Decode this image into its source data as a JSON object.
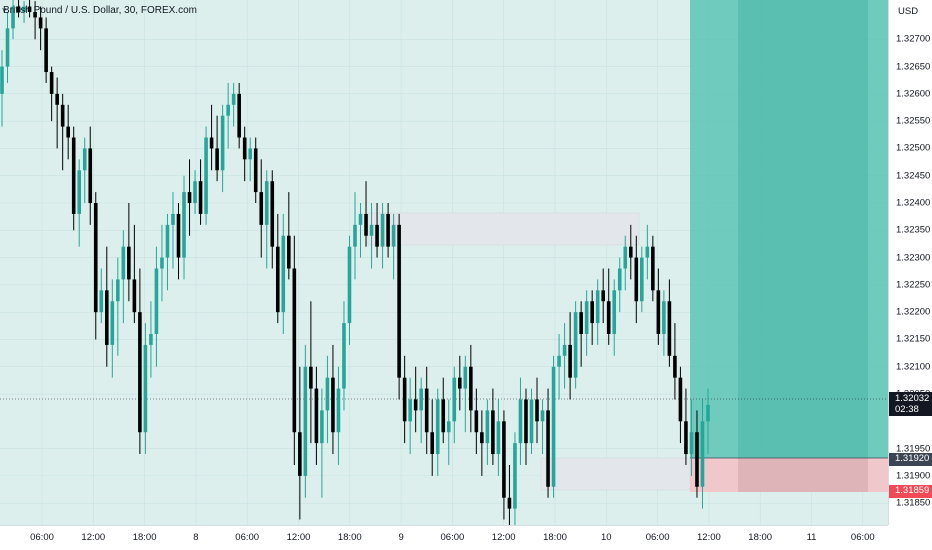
{
  "symbol": {
    "title": "British Pound / U.S. Dollar, 30, FOREX.com"
  },
  "price_scale": {
    "currency": "USD",
    "ticks": [
      "1.32700",
      "1.32650",
      "1.32600",
      "1.32550",
      "1.32500",
      "1.32450",
      "1.32400",
      "1.32350",
      "1.32300",
      "1.32250",
      "1.32200",
      "1.32150",
      "1.32100",
      "1.32050",
      "1.31950",
      "1.31900",
      "1.31850"
    ],
    "current_price": "1.32032",
    "countdown": "02:38",
    "target_price": "1.31920",
    "stop_price": "1.31859"
  },
  "time_scale": {
    "labels": [
      "06:00",
      "12:00",
      "18:00",
      "8",
      "06:00",
      "12:00",
      "18:00",
      "9",
      "06:00",
      "12:00",
      "18:00",
      "10",
      "06:00",
      "12:00",
      "18:00",
      "11",
      "06:00"
    ]
  },
  "colors": {
    "background": "#dcefed",
    "bull": "#26a69a",
    "bear": "#000000",
    "profit_zone": "#5cc4b4",
    "loss_zone": "#f2c3c7",
    "supply_box": "#e3e6ea"
  },
  "chart_data": {
    "type": "candlestick",
    "ylim": [
      1.3181,
      1.3275
    ],
    "interval": "30",
    "candles": [
      [
        1.326,
        1.3268,
        1.3254,
        1.3265
      ],
      [
        1.3265,
        1.3275,
        1.3262,
        1.3272
      ],
      [
        1.3272,
        1.3278,
        1.327,
        1.3276
      ],
      [
        1.3276,
        1.3278,
        1.3274,
        1.3275
      ],
      [
        1.3275,
        1.3277,
        1.3273,
        1.3276
      ],
      [
        1.3276,
        1.3278,
        1.3274,
        1.3275
      ],
      [
        1.3275,
        1.3277,
        1.327,
        1.3274
      ],
      [
        1.3274,
        1.3276,
        1.3268,
        1.3272
      ],
      [
        1.3272,
        1.3274,
        1.3262,
        1.3264
      ],
      [
        1.3264,
        1.3265,
        1.3255,
        1.326
      ],
      [
        1.326,
        1.3263,
        1.325,
        1.3258
      ],
      [
        1.3258,
        1.326,
        1.3246,
        1.3254
      ],
      [
        1.3254,
        1.3258,
        1.3248,
        1.3252
      ],
      [
        1.3252,
        1.3254,
        1.3235,
        1.3238
      ],
      [
        1.3238,
        1.3248,
        1.3232,
        1.3246
      ],
      [
        1.3246,
        1.3252,
        1.324,
        1.325
      ],
      [
        1.325,
        1.3254,
        1.3236,
        1.324
      ],
      [
        1.324,
        1.3242,
        1.3215,
        1.322
      ],
      [
        1.322,
        1.3228,
        1.3218,
        1.3224
      ],
      [
        1.3224,
        1.3232,
        1.321,
        1.3214
      ],
      [
        1.3214,
        1.3226,
        1.3208,
        1.3222
      ],
      [
        1.3222,
        1.323,
        1.3212,
        1.3226
      ],
      [
        1.3226,
        1.3235,
        1.3218,
        1.3232
      ],
      [
        1.3232,
        1.324,
        1.3222,
        1.3226
      ],
      [
        1.3226,
        1.3236,
        1.3218,
        1.322
      ],
      [
        1.322,
        1.3228,
        1.3194,
        1.3198
      ],
      [
        1.3198,
        1.3218,
        1.3194,
        1.3214
      ],
      [
        1.3214,
        1.3222,
        1.3208,
        1.3216
      ],
      [
        1.3216,
        1.3232,
        1.321,
        1.3228
      ],
      [
        1.3228,
        1.3236,
        1.3222,
        1.323
      ],
      [
        1.323,
        1.3238,
        1.3224,
        1.3236
      ],
      [
        1.3236,
        1.3242,
        1.3228,
        1.3238
      ],
      [
        1.3238,
        1.324,
        1.3226,
        1.323
      ],
      [
        1.323,
        1.3245,
        1.3226,
        1.3242
      ],
      [
        1.3242,
        1.3248,
        1.3234,
        1.324
      ],
      [
        1.324,
        1.3246,
        1.3238,
        1.3244
      ],
      [
        1.3244,
        1.3248,
        1.3236,
        1.3238
      ],
      [
        1.3238,
        1.3254,
        1.3236,
        1.3252
      ],
      [
        1.3252,
        1.3258,
        1.3246,
        1.325
      ],
      [
        1.325,
        1.3256,
        1.3244,
        1.3246
      ],
      [
        1.3246,
        1.3258,
        1.3242,
        1.3256
      ],
      [
        1.3256,
        1.3262,
        1.325,
        1.3258
      ],
      [
        1.3258,
        1.3262,
        1.3254,
        1.326
      ],
      [
        1.326,
        1.3262,
        1.325,
        1.3252
      ],
      [
        1.3252,
        1.3254,
        1.3244,
        1.3248
      ],
      [
        1.3248,
        1.3252,
        1.3244,
        1.325
      ],
      [
        1.325,
        1.3252,
        1.324,
        1.3242
      ],
      [
        1.3242,
        1.3248,
        1.323,
        1.3236
      ],
      [
        1.3236,
        1.3246,
        1.3228,
        1.3244
      ],
      [
        1.3244,
        1.3246,
        1.3228,
        1.3232
      ],
      [
        1.3232,
        1.3238,
        1.3218,
        1.322
      ],
      [
        1.322,
        1.3238,
        1.3216,
        1.3234
      ],
      [
        1.3234,
        1.3242,
        1.3226,
        1.3228
      ],
      [
        1.3228,
        1.3234,
        1.3192,
        1.3198
      ],
      [
        1.3198,
        1.321,
        1.3182,
        1.319
      ],
      [
        1.319,
        1.3214,
        1.3186,
        1.321
      ],
      [
        1.321,
        1.3222,
        1.3196,
        1.3206
      ],
      [
        1.3206,
        1.321,
        1.3192,
        1.3196
      ],
      [
        1.3196,
        1.3206,
        1.3186,
        1.3202
      ],
      [
        1.3202,
        1.3212,
        1.3196,
        1.3208
      ],
      [
        1.3208,
        1.3214,
        1.3194,
        1.3198
      ],
      [
        1.3198,
        1.321,
        1.3192,
        1.3206
      ],
      [
        1.3206,
        1.3222,
        1.3202,
        1.3218
      ],
      [
        1.3218,
        1.3234,
        1.3214,
        1.3232
      ],
      [
        1.3232,
        1.3242,
        1.3226,
        1.3236
      ],
      [
        1.3236,
        1.324,
        1.323,
        1.3238
      ],
      [
        1.3238,
        1.3244,
        1.3232,
        1.3234
      ],
      [
        1.3234,
        1.324,
        1.3228,
        1.3236
      ],
      [
        1.3236,
        1.324,
        1.323,
        1.3232
      ],
      [
        1.3232,
        1.324,
        1.3228,
        1.3238
      ],
      [
        1.3238,
        1.324,
        1.323,
        1.3232
      ],
      [
        1.3232,
        1.3238,
        1.3226,
        1.3236
      ],
      [
        1.3236,
        1.3238,
        1.3204,
        1.3208
      ],
      [
        1.3208,
        1.3212,
        1.3196,
        1.32
      ],
      [
        1.32,
        1.3208,
        1.3194,
        1.3204
      ],
      [
        1.3204,
        1.321,
        1.3198,
        1.3202
      ],
      [
        1.3202,
        1.3208,
        1.3196,
        1.3206
      ],
      [
        1.3206,
        1.321,
        1.3194,
        1.3198
      ],
      [
        1.3198,
        1.3204,
        1.319,
        1.3194
      ],
      [
        1.3194,
        1.3206,
        1.319,
        1.3204
      ],
      [
        1.3204,
        1.3208,
        1.3196,
        1.3198
      ],
      [
        1.3198,
        1.3204,
        1.3192,
        1.32
      ],
      [
        1.32,
        1.321,
        1.3196,
        1.3208
      ],
      [
        1.3208,
        1.3212,
        1.3202,
        1.3206
      ],
      [
        1.3206,
        1.3212,
        1.3198,
        1.321
      ],
      [
        1.321,
        1.3214,
        1.3198,
        1.3202
      ],
      [
        1.3202,
        1.3206,
        1.3194,
        1.3198
      ],
      [
        1.3198,
        1.3202,
        1.319,
        1.3196
      ],
      [
        1.3196,
        1.3204,
        1.3192,
        1.3202
      ],
      [
        1.3202,
        1.3206,
        1.3192,
        1.3194
      ],
      [
        1.3194,
        1.3204,
        1.319,
        1.32
      ],
      [
        1.32,
        1.3202,
        1.3182,
        1.3186
      ],
      [
        1.3186,
        1.3192,
        1.3178,
        1.3184
      ],
      [
        1.3184,
        1.3198,
        1.318,
        1.3196
      ],
      [
        1.3196,
        1.3208,
        1.3192,
        1.3204
      ],
      [
        1.3204,
        1.3206,
        1.3192,
        1.3196
      ],
      [
        1.3196,
        1.3206,
        1.3194,
        1.3204
      ],
      [
        1.3204,
        1.3208,
        1.3196,
        1.32
      ],
      [
        1.32,
        1.3204,
        1.3194,
        1.3202
      ],
      [
        1.3202,
        1.3206,
        1.3186,
        1.3188
      ],
      [
        1.3188,
        1.3212,
        1.3186,
        1.321
      ],
      [
        1.321,
        1.3216,
        1.3204,
        1.3212
      ],
      [
        1.3212,
        1.3218,
        1.3206,
        1.3214
      ],
      [
        1.3214,
        1.322,
        1.3204,
        1.3208
      ],
      [
        1.3208,
        1.3222,
        1.3206,
        1.322
      ],
      [
        1.322,
        1.3222,
        1.321,
        1.3216
      ],
      [
        1.3216,
        1.3224,
        1.3212,
        1.3222
      ],
      [
        1.3222,
        1.3224,
        1.3214,
        1.3218
      ],
      [
        1.3218,
        1.3226,
        1.3214,
        1.3224
      ],
      [
        1.3224,
        1.3228,
        1.3218,
        1.3222
      ],
      [
        1.3222,
        1.3228,
        1.3214,
        1.3216
      ],
      [
        1.3216,
        1.3226,
        1.3212,
        1.3224
      ],
      [
        1.3224,
        1.323,
        1.322,
        1.3228
      ],
      [
        1.3228,
        1.3234,
        1.3224,
        1.3232
      ],
      [
        1.3232,
        1.3236,
        1.3226,
        1.323
      ],
      [
        1.323,
        1.3234,
        1.3218,
        1.3222
      ],
      [
        1.3222,
        1.3232,
        1.322,
        1.323
      ],
      [
        1.323,
        1.3236,
        1.3226,
        1.3232
      ],
      [
        1.3232,
        1.3234,
        1.3222,
        1.3224
      ],
      [
        1.3224,
        1.3228,
        1.3214,
        1.3216
      ],
      [
        1.3216,
        1.3224,
        1.3212,
        1.3222
      ],
      [
        1.3222,
        1.3226,
        1.321,
        1.3212
      ],
      [
        1.3212,
        1.3218,
        1.3204,
        1.3208
      ],
      [
        1.3208,
        1.321,
        1.3196,
        1.32
      ],
      [
        1.32,
        1.3206,
        1.3192,
        1.3194
      ],
      [
        1.3194,
        1.3204,
        1.319,
        1.3198
      ],
      [
        1.3198,
        1.3202,
        1.3186,
        1.3188
      ],
      [
        1.3188,
        1.3204,
        1.3184,
        1.32
      ],
      [
        1.32,
        1.3206,
        1.3194,
        1.3203
      ]
    ]
  }
}
